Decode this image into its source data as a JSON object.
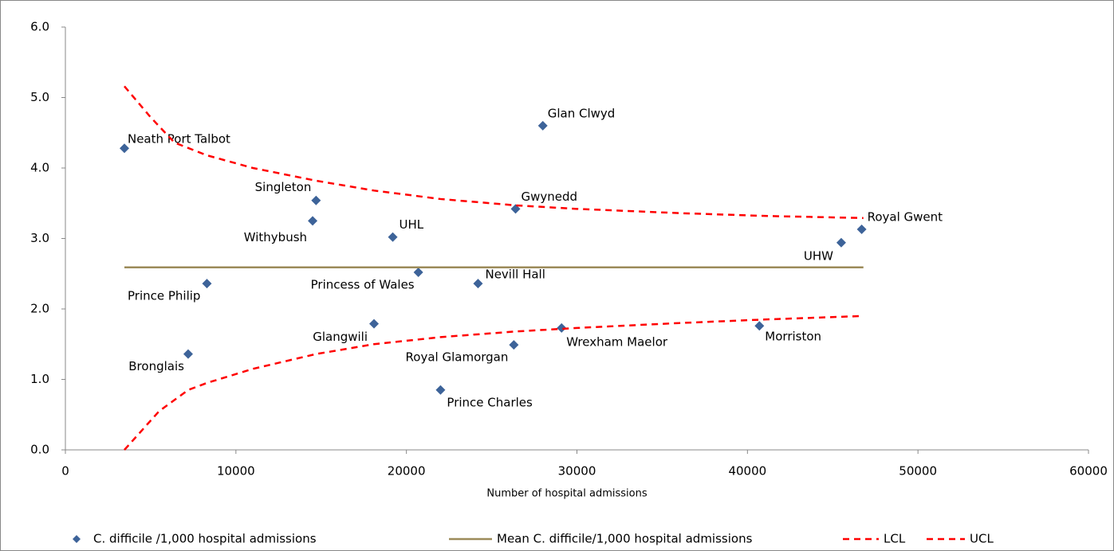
{
  "chart_data": {
    "type": "scatter",
    "xlabel": "Number of hospital admissions",
    "xlim": [
      0,
      60000
    ],
    "xticks": [
      0,
      10000,
      20000,
      30000,
      40000,
      50000,
      60000
    ],
    "ylim": [
      0,
      6
    ],
    "yticks": [
      {
        "value": 0,
        "label": "0.0"
      },
      {
        "value": 1,
        "label": "1.0"
      },
      {
        "value": 2,
        "label": "2.0"
      },
      {
        "value": 3,
        "label": "3.0"
      },
      {
        "value": 4,
        "label": "4.0"
      },
      {
        "value": 5,
        "label": "5.0"
      },
      {
        "value": 6,
        "label": "6.0"
      }
    ],
    "legend": "bottom",
    "series": [
      {
        "name": "C. difficile /1,000 hospital admissions",
        "kind": "scatter",
        "color": "#3d6399",
        "labels": [
          "Neath Port Talbot",
          "Glan Clwyd",
          "Singleton",
          "Withybush",
          "Gwynedd",
          "UHL",
          "Royal Gwent",
          "UHW",
          "Princess of Wales",
          "Nevill Hall",
          "Prince Philip",
          "Glangwili",
          "Royal Glamorgan",
          "Wrexham Maelor",
          "Morriston",
          "Bronglais",
          "Prince Charles"
        ],
        "x": [
          3460,
          28000,
          14700,
          14500,
          26400,
          19200,
          46700,
          45500,
          20700,
          24200,
          8300,
          18100,
          26300,
          29100,
          40700,
          7200,
          22000
        ],
        "values": [
          4.28,
          4.6,
          3.54,
          3.25,
          3.42,
          3.02,
          3.13,
          2.94,
          2.52,
          2.36,
          2.36,
          1.79,
          1.49,
          1.73,
          1.76,
          1.36,
          0.85
        ]
      },
      {
        "name": "Mean C. difficile/1,000 hospital admissions",
        "kind": "line",
        "color": "#9c8b5a",
        "x": [
          3460,
          46800
        ],
        "values": [
          2.59,
          2.59
        ]
      },
      {
        "name": "LCL",
        "kind": "dashed",
        "color": "#ff0000",
        "x": [
          3460,
          5500,
          7200,
          8300,
          11000,
          14700,
          18100,
          22000,
          26400,
          30000,
          36000,
          41000,
          46800
        ],
        "values": [
          0,
          0.55,
          0.85,
          0.95,
          1.15,
          1.36,
          1.5,
          1.6,
          1.68,
          1.73,
          1.8,
          1.85,
          1.9
        ]
      },
      {
        "name": "UCL",
        "kind": "dashed",
        "color": "#ff0000",
        "x": [
          3460,
          5000,
          6400,
          8300,
          11000,
          14700,
          18100,
          22000,
          26400,
          30000,
          36000,
          41000,
          46800
        ],
        "values": [
          5.16,
          4.72,
          4.36,
          4.18,
          4.0,
          3.82,
          3.68,
          3.56,
          3.47,
          3.42,
          3.36,
          3.32,
          3.29
        ]
      }
    ]
  }
}
